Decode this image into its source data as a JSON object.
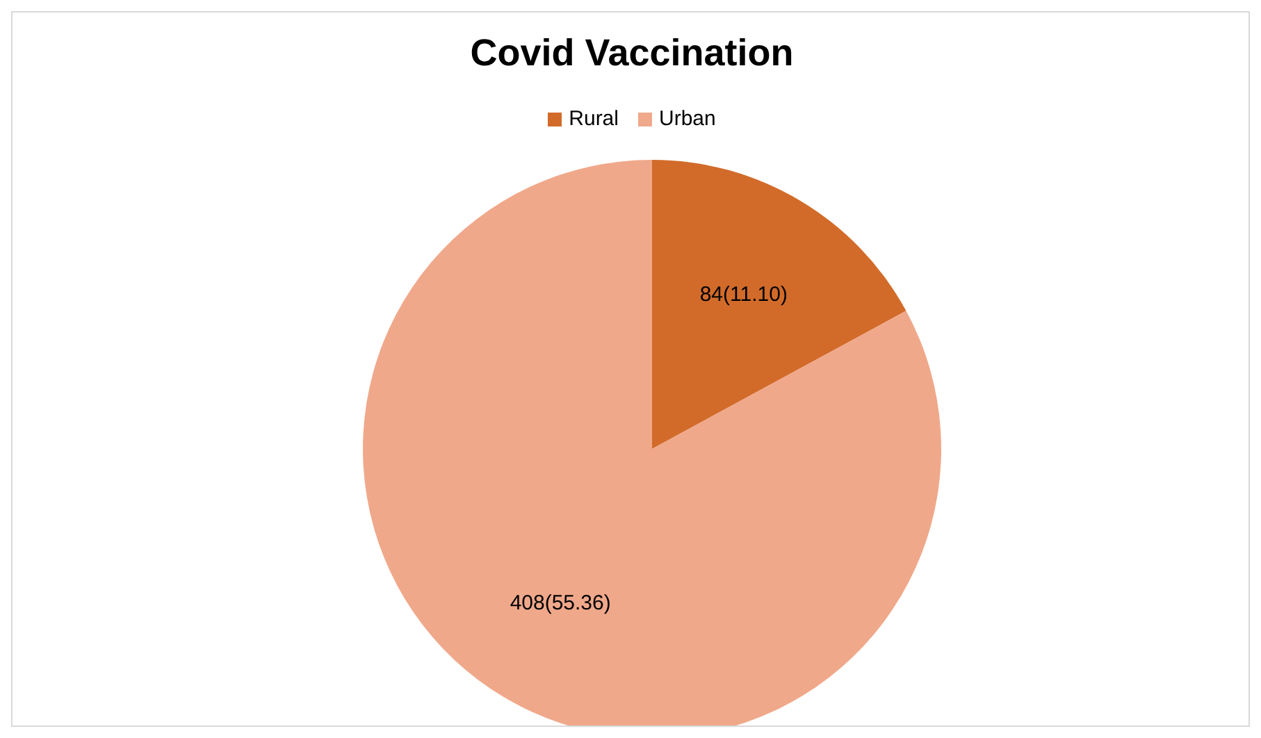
{
  "chart_data": {
    "type": "pie",
    "title": "Covid Vaccination",
    "categories": [
      "Rural",
      "Urban"
    ],
    "values": [
      84,
      408
    ],
    "colors": [
      "#d26b2a",
      "#f0a88a"
    ],
    "value_labels": [
      "84(11.10)",
      "408(55.36)"
    ],
    "legend": "top"
  }
}
